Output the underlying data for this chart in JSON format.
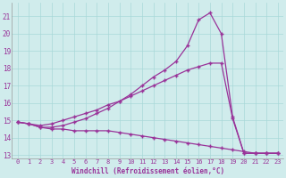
{
  "background_color": "#d0ecec",
  "grid_color": "#a8d8d8",
  "line_color": "#993399",
  "marker": "+",
  "xlabel": "Windchill (Refroidissement éolien,°C)",
  "xlim": [
    -0.5,
    23.5
  ],
  "ylim": [
    12.8,
    21.8
  ],
  "xticks": [
    0,
    1,
    2,
    3,
    4,
    5,
    6,
    7,
    8,
    9,
    10,
    11,
    12,
    13,
    14,
    15,
    16,
    17,
    18,
    19,
    20,
    21,
    22,
    23
  ],
  "yticks": [
    13,
    14,
    15,
    16,
    17,
    18,
    19,
    20,
    21
  ],
  "curve1_x": [
    0,
    1,
    2,
    3,
    4,
    5,
    6,
    7,
    8,
    9,
    10,
    11,
    12,
    13,
    14,
    15,
    16,
    17,
    18,
    19,
    20,
    21,
    22,
    23
  ],
  "curve1_y": [
    14.9,
    14.8,
    14.6,
    14.6,
    14.7,
    14.9,
    15.1,
    15.4,
    15.7,
    16.1,
    16.5,
    17.0,
    17.5,
    17.9,
    18.4,
    19.3,
    20.8,
    21.2,
    20.0,
    15.2,
    13.1,
    13.1,
    13.1,
    13.1
  ],
  "curve2_x": [
    0,
    1,
    2,
    3,
    4,
    5,
    6,
    7,
    8,
    9,
    10,
    11,
    12,
    13,
    14,
    15,
    16,
    17,
    18,
    19,
    20,
    21,
    22,
    23
  ],
  "curve2_y": [
    14.9,
    14.8,
    14.7,
    14.8,
    15.0,
    15.2,
    15.4,
    15.6,
    15.9,
    16.1,
    16.4,
    16.7,
    17.0,
    17.3,
    17.6,
    17.9,
    18.1,
    18.3,
    18.3,
    15.1,
    13.1,
    13.1,
    13.1,
    13.1
  ],
  "curve3_x": [
    0,
    1,
    2,
    3,
    4,
    5,
    6,
    7,
    8,
    9,
    10,
    11,
    12,
    13,
    14,
    15,
    16,
    17,
    18,
    19,
    20,
    21,
    22,
    23
  ],
  "curve3_y": [
    14.9,
    14.8,
    14.6,
    14.5,
    14.5,
    14.4,
    14.4,
    14.4,
    14.4,
    14.3,
    14.2,
    14.1,
    14.0,
    13.9,
    13.8,
    13.7,
    13.6,
    13.5,
    13.4,
    13.3,
    13.2,
    13.1,
    13.1,
    13.1
  ]
}
